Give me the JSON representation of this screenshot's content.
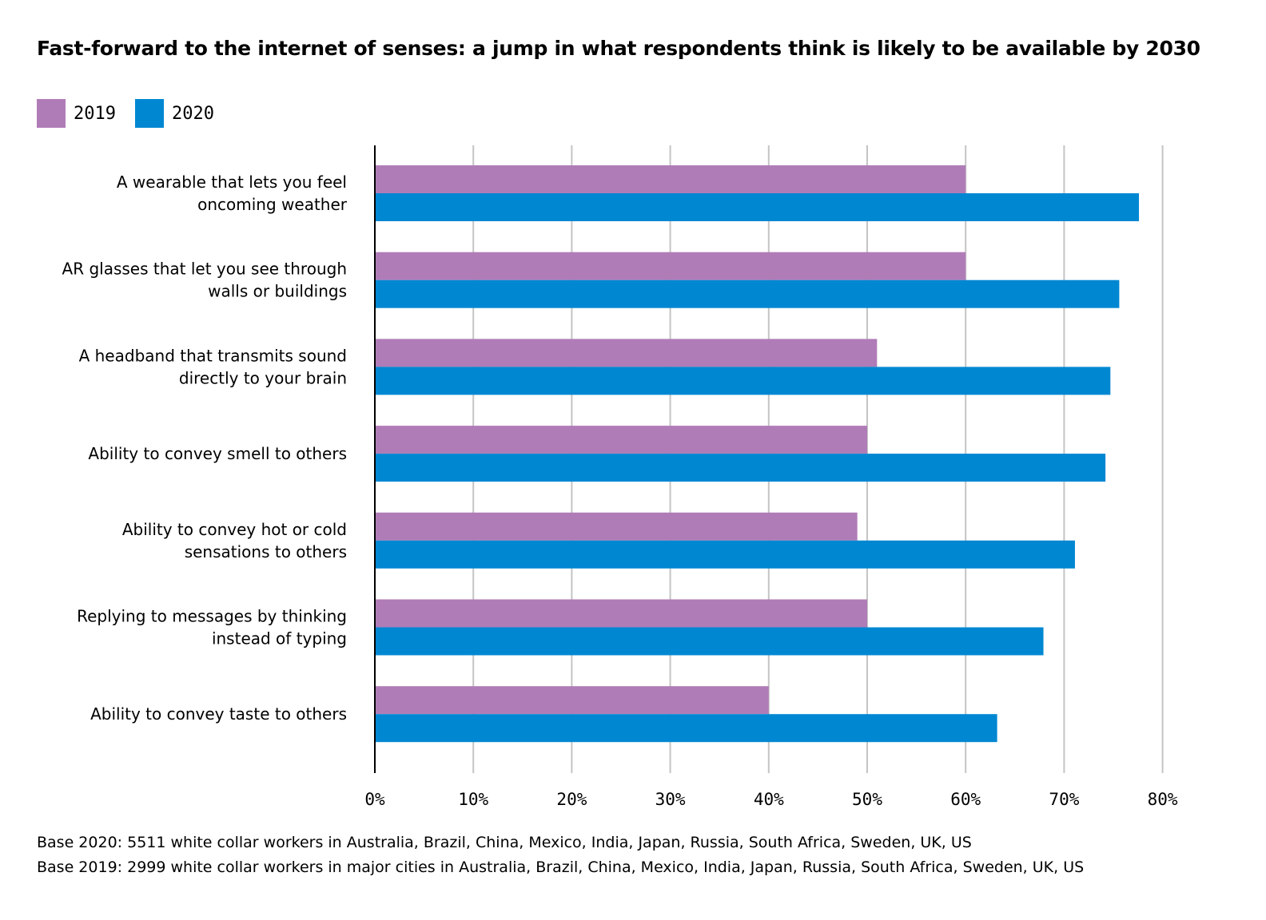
{
  "chart_data": {
    "type": "bar",
    "orientation": "horizontal",
    "title": "Fast-forward to the internet of senses: a jump in what respondents think is likely to be available by 2030",
    "categories": [
      [
        "A wearable that lets you feel",
        "oncoming weather"
      ],
      [
        "AR glasses that let you see through",
        "walls or buildings"
      ],
      [
        "A headband that transmits sound",
        "directly to your brain"
      ],
      [
        "Ability to convey smell to others"
      ],
      [
        "Ability to convey hot or cold",
        "sensations to others"
      ],
      [
        "Replying to messages by thinking",
        "instead of typing"
      ],
      [
        "Ability to convey taste to others"
      ]
    ],
    "series": [
      {
        "name": "2019",
        "color": "#b07cb7",
        "values": [
          60,
          60,
          51,
          50,
          49,
          50,
          40
        ]
      },
      {
        "name": "2020",
        "color": "#0087d2",
        "values": [
          77.6,
          75.6,
          74.7,
          74.2,
          71.1,
          67.9,
          63.2
        ]
      }
    ],
    "xlim": [
      0,
      80
    ],
    "xticks": [
      0,
      10,
      20,
      30,
      40,
      50,
      60,
      70,
      80
    ],
    "tick_format": "%",
    "xlabel": "",
    "ylabel": "",
    "grid": true,
    "legend_position": "top-left"
  },
  "footnotes": [
    "Base 2020: 5511 white collar workers in Australia, Brazil, China, Mexico, India, Japan, Russia, South Africa, Sweden, UK, US",
    "Base 2019: 2999 white collar workers in major cities in Australia, Brazil, China, Mexico, India, Japan, Russia, South Africa, Sweden, UK, US"
  ]
}
